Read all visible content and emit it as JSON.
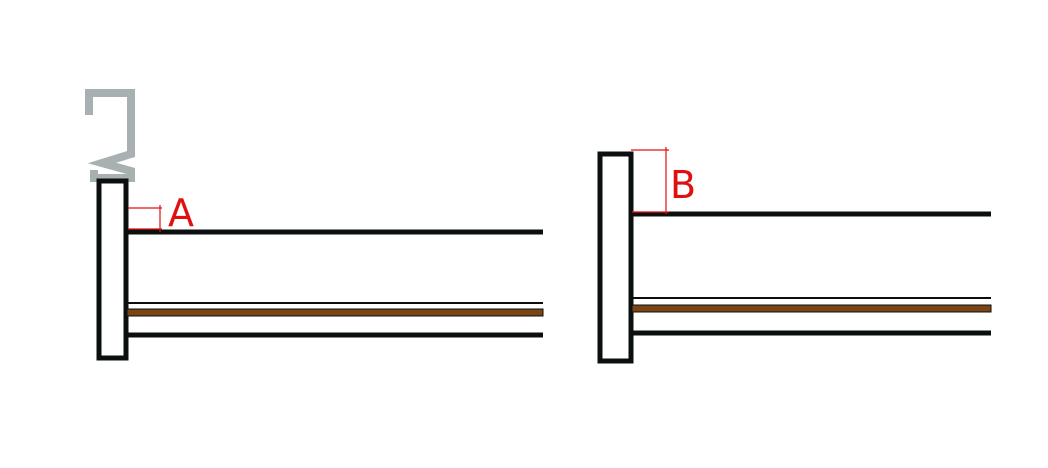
{
  "labels": {
    "a": "A",
    "b": "B"
  },
  "colors": {
    "outline": "#0b0f10",
    "accent_red": "#e01010",
    "clip_gray": "#a9b0b2",
    "brown_strip": "#7a4414"
  }
}
